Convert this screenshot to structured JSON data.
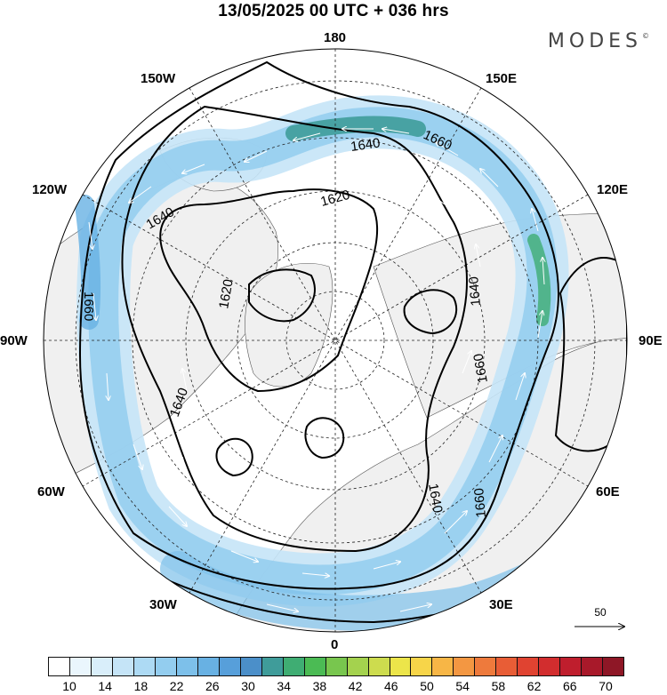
{
  "header": {
    "title": "13/05/2025  00 UTC  + 036 hrs",
    "brand": "MODES",
    "brand_mark": "©"
  },
  "map": {
    "projection": "north-polar-stereographic",
    "longitude_labels": {
      "lon_0": "0",
      "lon_30e": "30E",
      "lon_60e": "60E",
      "lon_90e": "90E",
      "lon_120e": "120E",
      "lon_150e": "150E",
      "lon_180": "180",
      "lon_150w": "150W",
      "lon_120w": "120W",
      "lon_90w": "90W",
      "lon_60w": "60W",
      "lon_30w": "30W"
    },
    "contour_labels": {
      "c1620_a": "1620",
      "c1620_b": "1620",
      "c1640_a": "1640",
      "c1640_b": "1640",
      "c1640_c": "1640",
      "c1640_d": "1640",
      "c1640_e": "1640",
      "c1660_a": "1660",
      "c1660_b": "1660",
      "c1660_c": "1660",
      "c1660_d": "1660"
    },
    "land_color": "#f0f0f0",
    "ocean_color": "#ffffff"
  },
  "reference_vector": {
    "label": "50"
  },
  "colorbar": {
    "colors": [
      "#ffffff",
      "#eaf6fd",
      "#d9eefa",
      "#c5e4f7",
      "#addaf4",
      "#93cdef",
      "#7dc0ea",
      "#68b1e3",
      "#579fda",
      "#4b8fc9",
      "#3f9c9a",
      "#3fad73",
      "#4bbb54",
      "#78c64e",
      "#a4d24e",
      "#cddc4e",
      "#ece54a",
      "#f7d549",
      "#f7b646",
      "#f39742",
      "#ee7a3c",
      "#e85d36",
      "#e04331",
      "#d22d2e",
      "#bf1e2d",
      "#a8192a",
      "#8e1726"
    ],
    "labels": [
      "10",
      "14",
      "18",
      "22",
      "26",
      "30",
      "34",
      "38",
      "42",
      "46",
      "50",
      "54",
      "58",
      "62",
      "66",
      "70"
    ]
  }
}
